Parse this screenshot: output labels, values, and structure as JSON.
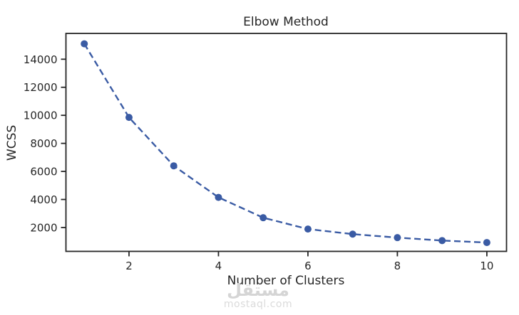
{
  "title": "Elbow Method",
  "watermark": {
    "logo_text": "مستقل",
    "site_text": "mostaql.com"
  },
  "colors": {
    "line": "#3A5BA4",
    "spine": "#262626",
    "text": "#262626",
    "watermark": "#d5d5d5",
    "background": "#ffffff"
  },
  "chart_data": {
    "type": "line",
    "title": "Elbow Method",
    "xlabel": "Number of Clusters",
    "ylabel": "WCSS",
    "x": [
      1,
      2,
      3,
      4,
      5,
      6,
      7,
      8,
      9,
      10
    ],
    "series": [
      {
        "name": "WCSS",
        "values": [
          15100,
          9850,
          6400,
          4150,
          2700,
          1890,
          1530,
          1280,
          1070,
          930
        ]
      }
    ],
    "x_ticks": [
      2,
      4,
      6,
      8,
      10
    ],
    "y_ticks": [
      2000,
      4000,
      6000,
      8000,
      10000,
      12000,
      14000
    ],
    "xlim": [
      0.59,
      10.44
    ],
    "ylim": [
      300,
      15840
    ],
    "grid": false,
    "legend": null,
    "line_style": "dashed",
    "marker": "circle",
    "line_color": "#3A5BA4"
  }
}
